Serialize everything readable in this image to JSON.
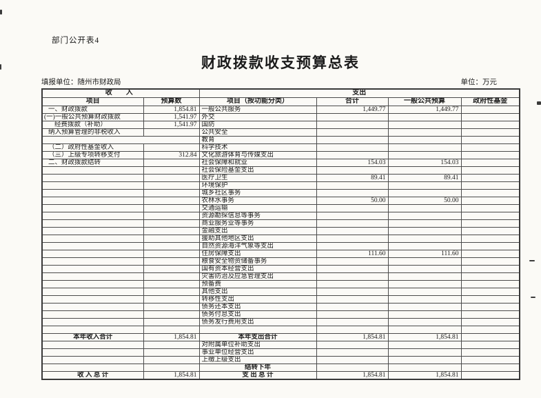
{
  "page": {
    "form_tag": "部门公开表4",
    "title": "财政拨款收支预算总表",
    "reporting_unit": "填报单位：随州市财政局",
    "unit_note": "单位：万元"
  },
  "table": {
    "income_group_header": "收　入",
    "expenditure_group_header": "支出",
    "columns": [
      "项目",
      "预算数",
      "项目（按功能分类）",
      "合计",
      "一般公共预算",
      "政府性基金"
    ],
    "rows": [
      {
        "income": "一、财政拨款",
        "indent": 1,
        "budget": "1,854.81",
        "expense": "一般公共服务",
        "total": "1,449.77",
        "general": "1,449.77",
        "fund": ""
      },
      {
        "income": "(一)一般公共预算财政拨款",
        "indent": 0,
        "budget": "1,541.97",
        "expense": "外交",
        "total": "",
        "general": "",
        "fund": ""
      },
      {
        "income": "经费拨款（补助）",
        "indent": 2,
        "budget": "1,541.97",
        "expense": "国防",
        "total": "",
        "general": "",
        "fund": ""
      },
      {
        "income": "纳入预算管理的非税收入",
        "indent": 1,
        "budget": "",
        "expense": "公共安全",
        "total": "",
        "general": "",
        "fund": ""
      },
      {
        "income": "",
        "budget": "",
        "expense": "教育",
        "total": "",
        "general": "",
        "fund": "",
        "ghost": true
      },
      {
        "income": "（二）政府性基金收入",
        "indent": 1,
        "budget": "",
        "expense": "科学技术",
        "total": "",
        "general": "",
        "fund": ""
      },
      {
        "income": "（三）上级专项转移支付",
        "indent": 1,
        "budget": "312.84",
        "expense": "文化旅游体育与传媒支出",
        "total": "",
        "general": "",
        "fund": ""
      },
      {
        "income": "二、财政拨款结转",
        "indent": 1,
        "budget": "",
        "expense": "社会保障和就业",
        "total": "154.03",
        "general": "154.03",
        "fund": ""
      },
      {
        "income": "",
        "budget": "",
        "expense": "社会保险基金支出",
        "total": "",
        "general": "",
        "fund": ""
      },
      {
        "income": "",
        "budget": "",
        "expense": "医疗卫生",
        "total": "89.41",
        "general": "89.41",
        "fund": ""
      },
      {
        "income": "",
        "budget": "",
        "expense": "环境保护",
        "total": "",
        "general": "",
        "fund": ""
      },
      {
        "income": "",
        "budget": "",
        "expense": "城乡社区事务",
        "total": "",
        "general": "",
        "fund": ""
      },
      {
        "income": "",
        "budget": "",
        "expense": "农林水事务",
        "total": "50.00",
        "general": "50.00",
        "fund": ""
      },
      {
        "income": "",
        "budget": "",
        "expense": "交通运输",
        "total": "",
        "general": "",
        "fund": ""
      },
      {
        "income": "",
        "budget": "",
        "expense": "资源勘探信息等事务",
        "total": "",
        "general": "",
        "fund": ""
      },
      {
        "income": "",
        "budget": "",
        "expense": "商业服务业等事务",
        "total": "",
        "general": "",
        "fund": ""
      },
      {
        "income": "",
        "budget": "",
        "expense": "金融支出",
        "total": "",
        "general": "",
        "fund": ""
      },
      {
        "income": "",
        "budget": "",
        "expense": "援助其他地区支出",
        "total": "",
        "general": "",
        "fund": ""
      },
      {
        "income": "",
        "budget": "",
        "expense": "自然资源海洋气象等支出",
        "total": "",
        "general": "",
        "fund": ""
      },
      {
        "income": "",
        "budget": "",
        "expense": "住房保障支出",
        "total": "111.60",
        "general": "111.60",
        "fund": ""
      },
      {
        "income": "",
        "budget": "",
        "expense": "粮食安全物资储备事务",
        "total": "",
        "general": "",
        "fund": ""
      },
      {
        "income": "",
        "budget": "",
        "expense": "国有资本经营支出",
        "total": "",
        "general": "",
        "fund": ""
      },
      {
        "income": "",
        "budget": "",
        "expense": "灾害防治及应急管理支出",
        "total": "",
        "general": "",
        "fund": ""
      },
      {
        "income": "",
        "budget": "",
        "expense": "预备费",
        "total": "",
        "general": "",
        "fund": ""
      },
      {
        "income": "",
        "budget": "",
        "expense": "其他支出",
        "total": "",
        "general": "",
        "fund": ""
      },
      {
        "income": "",
        "budget": "",
        "expense": "转移性支出",
        "total": "",
        "general": "",
        "fund": ""
      },
      {
        "income": "",
        "budget": "",
        "expense": "债务还本支出",
        "total": "",
        "general": "",
        "fund": ""
      },
      {
        "income": "",
        "budget": "",
        "expense": "债务付息支出",
        "total": "",
        "general": "",
        "fund": ""
      },
      {
        "income": "",
        "budget": "",
        "expense": "债务发行费用支出",
        "total": "",
        "general": "",
        "fund": ""
      },
      {
        "income": "",
        "budget": "",
        "expense": "",
        "total": "",
        "general": "",
        "fund": ""
      },
      {
        "income": "本年收入合计",
        "budget": "1,854.81",
        "expense": "本年支出合计",
        "total": "1,854.81",
        "general": "1,854.81",
        "fund": "",
        "emph": true
      },
      {
        "income": "",
        "budget": "",
        "expense": "对附属单位补助支出",
        "total": "",
        "general": "",
        "fund": ""
      },
      {
        "income": "",
        "budget": "",
        "expense": "事业单位经营支出",
        "total": "",
        "general": "",
        "fund": ""
      },
      {
        "income": "",
        "budget": "",
        "expense": "上缴上级支出",
        "total": "",
        "general": "",
        "fund": ""
      },
      {
        "income": "",
        "budget": "",
        "expense": "结转下年",
        "total": "",
        "general": "",
        "fund": "",
        "emph": true
      },
      {
        "income": "收 入 总 计",
        "budget": "1,854.81",
        "expense": "支 出 总 计",
        "total": "1,854.81",
        "general": "1,854.81",
        "fund": "",
        "emph": true
      }
    ]
  },
  "colors": {
    "page_bg": "#fbfaf6",
    "line": "#4a4a4a",
    "line_dark": "#383838",
    "text": "#1b1b1b"
  }
}
